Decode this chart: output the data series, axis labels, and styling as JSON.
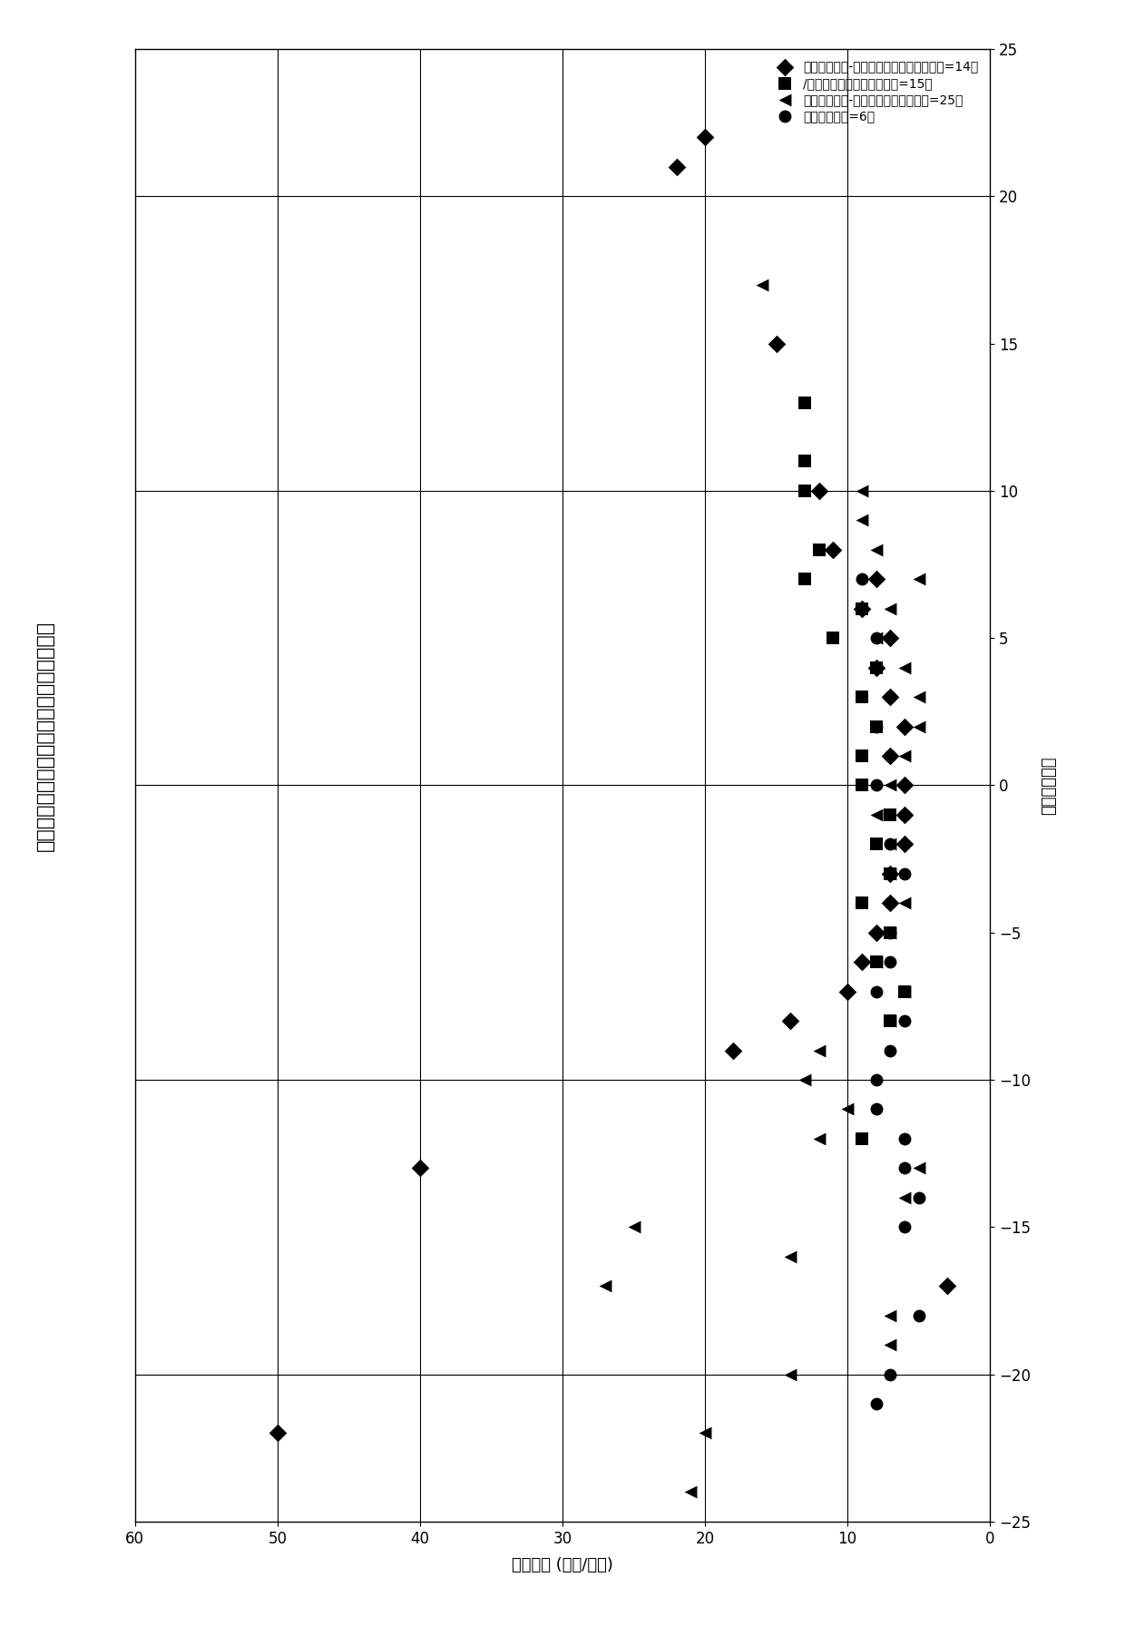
{
  "title": "药物不良反应比对耐受性之苯妥英血浆浓度",
  "xlabel_bottom": "苯妥英率 (毫克/毫升)",
  "ylabel_right": "时间（天数）",
  "xlim": [
    0,
    60
  ],
  "ylim": [
    -25,
    25
  ],
  "xticks": [
    0,
    10,
    20,
    30,
    40,
    50,
    60
  ],
  "yticks": [
    -25,
    -20,
    -15,
    -10,
    -5,
    0,
    5,
    10,
    15,
    20,
    25
  ],
  "vlines_x": [
    10,
    20,
    30,
    40,
    50
  ],
  "hlines_y": [
    -20,
    -10,
    0,
    10,
    20
  ],
  "background_color": "#ffffff",
  "marker_size": 100,
  "series": {
    "diamond": {
      "label": "药物不良反应-皮疹文生强生症候群（个数=14）",
      "marker": "D",
      "color": "#000000",
      "data_conc_time": [
        [
          50,
          -22
        ],
        [
          3,
          -17
        ],
        [
          40,
          -13
        ],
        [
          18,
          -9
        ],
        [
          14,
          -8
        ],
        [
          10,
          -7
        ],
        [
          9,
          -6
        ],
        [
          8,
          -5
        ],
        [
          7,
          -4
        ],
        [
          7,
          -3
        ],
        [
          6,
          -2
        ],
        [
          6,
          -1
        ],
        [
          6,
          0
        ],
        [
          7,
          1
        ],
        [
          6,
          2
        ],
        [
          7,
          3
        ],
        [
          8,
          4
        ],
        [
          7,
          5
        ],
        [
          9,
          6
        ],
        [
          8,
          7
        ],
        [
          11,
          8
        ],
        [
          12,
          10
        ],
        [
          15,
          15
        ],
        [
          22,
          21
        ],
        [
          20,
          22
        ]
      ]
    },
    "square": {
      "label": "/毒性表皮坏死溶解症（个数=15）",
      "marker": "s",
      "color": "#000000",
      "data_conc_time": [
        [
          9,
          -12
        ],
        [
          7,
          -8
        ],
        [
          6,
          -7
        ],
        [
          8,
          -6
        ],
        [
          7,
          -5
        ],
        [
          9,
          -4
        ],
        [
          7,
          -3
        ],
        [
          8,
          -2
        ],
        [
          7,
          -1
        ],
        [
          9,
          0
        ],
        [
          9,
          1
        ],
        [
          8,
          2
        ],
        [
          9,
          3
        ],
        [
          8,
          4
        ],
        [
          11,
          5
        ],
        [
          9,
          6
        ],
        [
          13,
          7
        ],
        [
          12,
          8
        ],
        [
          13,
          10
        ],
        [
          13,
          11
        ],
        [
          13,
          13
        ]
      ]
    },
    "triangle": {
      "label": "药物不良反应-药物过敏综合症（个数=25）",
      "marker": "<",
      "color": "#000000",
      "data_conc_time": [
        [
          21,
          -24
        ],
        [
          20,
          -22
        ],
        [
          14,
          -20
        ],
        [
          7,
          -19
        ],
        [
          7,
          -18
        ],
        [
          27,
          -17
        ],
        [
          14,
          -16
        ],
        [
          25,
          -15
        ],
        [
          6,
          -14
        ],
        [
          5,
          -13
        ],
        [
          12,
          -12
        ],
        [
          10,
          -11
        ],
        [
          13,
          -10
        ],
        [
          12,
          -9
        ],
        [
          7,
          -8
        ],
        [
          6,
          -7
        ],
        [
          8,
          -6
        ],
        [
          7,
          -5
        ],
        [
          6,
          -4
        ],
        [
          7,
          -3
        ],
        [
          7,
          -2
        ],
        [
          8,
          -1
        ],
        [
          7,
          0
        ],
        [
          6,
          1
        ],
        [
          5,
          2
        ],
        [
          5,
          3
        ],
        [
          6,
          4
        ],
        [
          8,
          5
        ],
        [
          7,
          6
        ],
        [
          5,
          7
        ],
        [
          8,
          8
        ],
        [
          9,
          9
        ],
        [
          9,
          10
        ],
        [
          16,
          17
        ]
      ]
    },
    "circle": {
      "label": "对照组（个数=6）",
      "marker": "o",
      "color": "#000000",
      "data_conc_time": [
        [
          8,
          -21
        ],
        [
          7,
          -20
        ],
        [
          5,
          -18
        ],
        [
          6,
          -15
        ],
        [
          5,
          -14
        ],
        [
          6,
          -13
        ],
        [
          6,
          -12
        ],
        [
          8,
          -11
        ],
        [
          8,
          -10
        ],
        [
          7,
          -9
        ],
        [
          6,
          -8
        ],
        [
          8,
          -7
        ],
        [
          7,
          -6
        ],
        [
          7,
          -5
        ],
        [
          7,
          -4
        ],
        [
          6,
          -3
        ],
        [
          7,
          -2
        ],
        [
          6,
          -1
        ],
        [
          8,
          0
        ],
        [
          7,
          1
        ],
        [
          8,
          2
        ],
        [
          7,
          3
        ],
        [
          8,
          4
        ],
        [
          8,
          5
        ],
        [
          9,
          6
        ],
        [
          9,
          7
        ]
      ]
    }
  }
}
